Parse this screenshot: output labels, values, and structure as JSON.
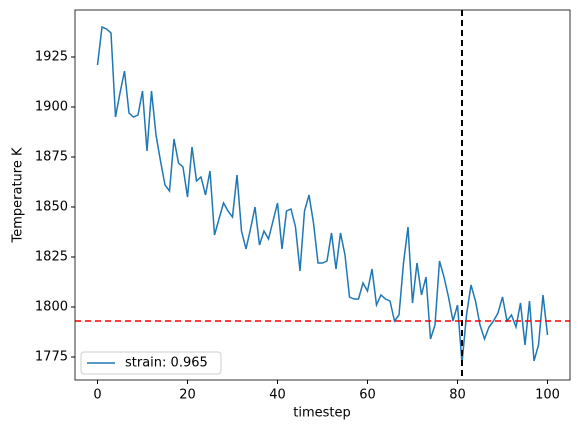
{
  "chart_data": {
    "type": "line",
    "xlabel": "timestep",
    "ylabel": "Temperature K",
    "x": [
      0,
      1,
      2,
      3,
      4,
      5,
      6,
      7,
      8,
      9,
      10,
      11,
      12,
      13,
      14,
      15,
      16,
      17,
      18,
      19,
      20,
      21,
      22,
      23,
      24,
      25,
      26,
      27,
      28,
      29,
      30,
      31,
      32,
      33,
      34,
      35,
      36,
      37,
      38,
      39,
      40,
      41,
      42,
      43,
      44,
      45,
      46,
      47,
      48,
      49,
      50,
      51,
      52,
      53,
      54,
      55,
      56,
      57,
      58,
      59,
      60,
      61,
      62,
      63,
      64,
      65,
      66,
      67,
      68,
      69,
      70,
      71,
      72,
      73,
      74,
      75,
      76,
      77,
      78,
      79,
      80,
      81,
      82,
      83,
      84,
      85,
      86,
      87,
      88,
      89,
      90,
      91,
      92,
      93,
      94,
      95,
      96,
      97,
      98,
      99,
      100
    ],
    "series": [
      {
        "name": "strain: 0.965",
        "color": "#1f77b4",
        "values": [
          1921,
          1940,
          1939,
          1937,
          1895,
          1907,
          1918,
          1897,
          1895,
          1896,
          1908,
          1878,
          1908,
          1886,
          1873,
          1861,
          1858,
          1884,
          1872,
          1870,
          1855,
          1880,
          1863,
          1865,
          1856,
          1868,
          1836,
          1844,
          1852,
          1848,
          1845,
          1866,
          1838,
          1829,
          1839,
          1850,
          1831,
          1838,
          1834,
          1843,
          1852,
          1829,
          1848,
          1849,
          1840,
          1818,
          1848,
          1856,
          1842,
          1822,
          1822,
          1823,
          1837,
          1819,
          1837,
          1826,
          1805,
          1804,
          1804,
          1812,
          1808,
          1819,
          1801,
          1806,
          1804,
          1803,
          1793,
          1796,
          1822,
          1840,
          1802,
          1822,
          1806,
          1815,
          1784,
          1791,
          1823,
          1815,
          1805,
          1793,
          1801,
          1772,
          1796,
          1811,
          1803,
          1791,
          1784,
          1790,
          1793,
          1797,
          1805,
          1793,
          1796,
          1790,
          1802,
          1781,
          1803,
          1773,
          1781,
          1806,
          1786
        ]
      }
    ],
    "vlines": [
      {
        "x": 81,
        "color": "#000000"
      }
    ],
    "hlines": [
      {
        "y": 1793,
        "color": "#ff0000"
      }
    ],
    "xlim": [
      -5,
      105
    ],
    "xticks": [
      0,
      20,
      40,
      60,
      80,
      100
    ],
    "ylim": [
      1763.5,
      1948.5
    ],
    "yticks": [
      1775,
      1800,
      1825,
      1850,
      1875,
      1900,
      1925
    ],
    "legend": "lower left",
    "grid": false
  }
}
